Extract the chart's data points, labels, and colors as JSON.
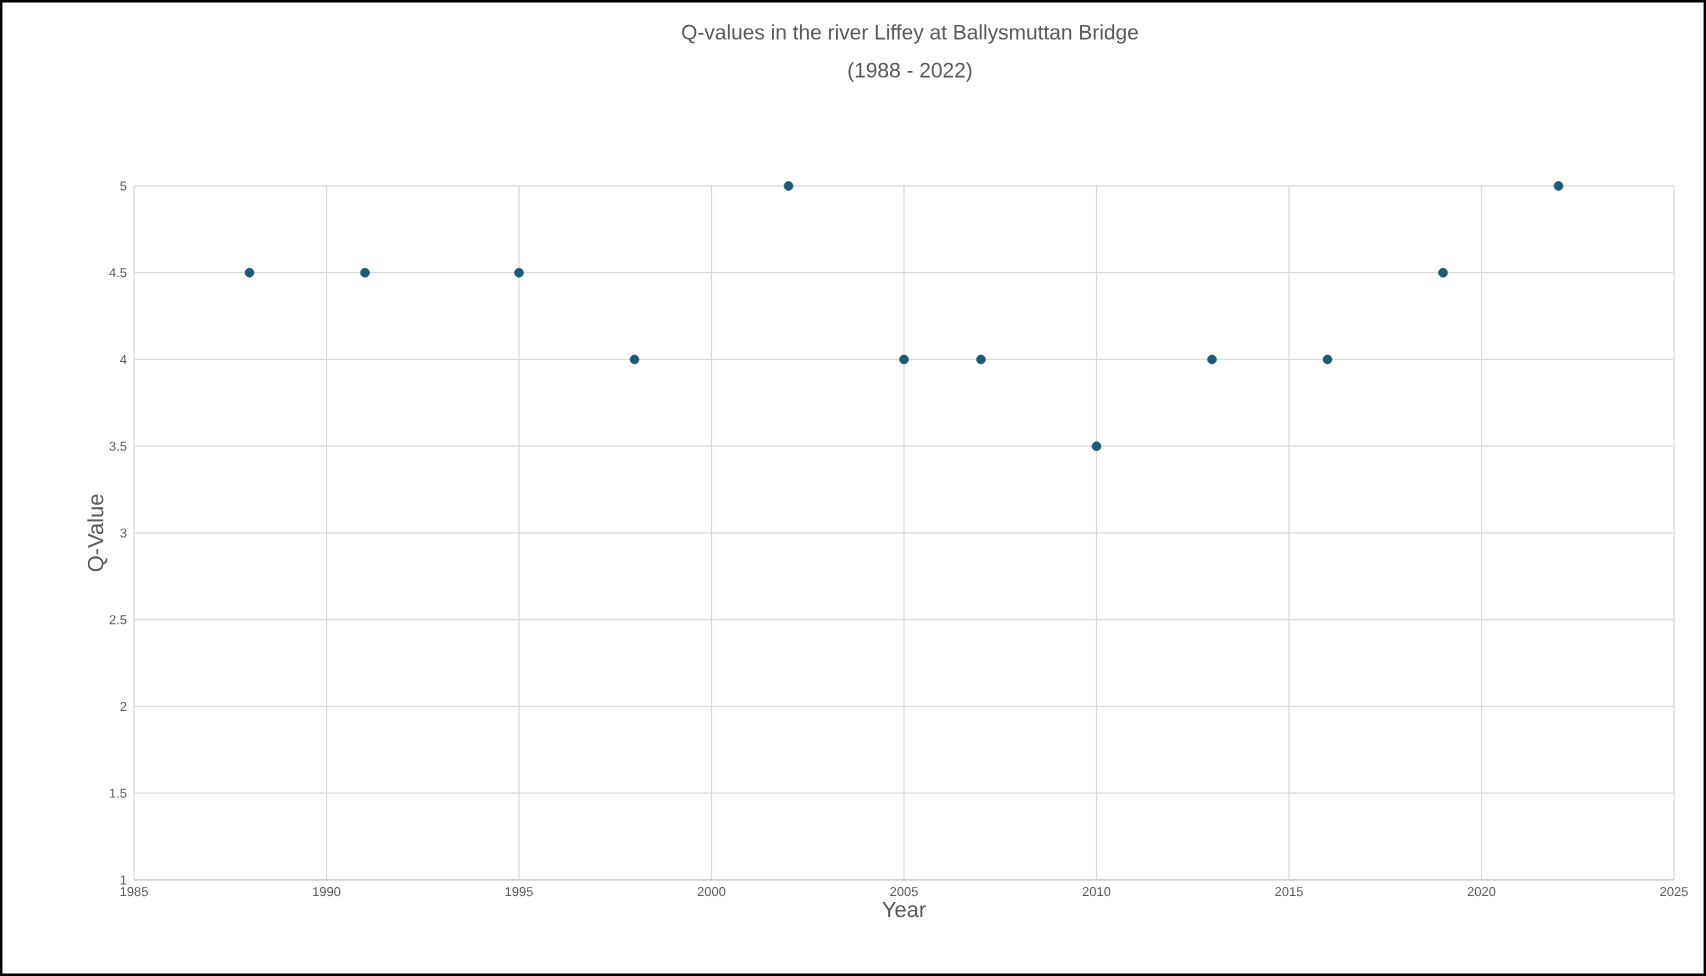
{
  "chart_data": {
    "type": "scatter",
    "title": "Q-values in the river Liffey at Ballysmuttan Bridge",
    "subtitle": "(1988 - 2022)",
    "xlabel": "Year",
    "ylabel": "Q-Value",
    "x": [
      1988,
      1991,
      1995,
      1998,
      2002,
      2005,
      2007,
      2010,
      2013,
      2016,
      2019,
      2022
    ],
    "values": [
      4.5,
      4.5,
      4.5,
      4,
      5,
      4,
      4,
      3.5,
      4,
      4,
      4.5,
      5
    ],
    "color": "#1b5a78",
    "marker": "circle",
    "grid": true,
    "xlim": [
      1985,
      2025
    ],
    "xticks": [
      1985,
      1990,
      1995,
      2000,
      2005,
      2010,
      2015,
      2020,
      2025
    ],
    "ylim": [
      1,
      5
    ],
    "yticks": [
      1,
      1.5,
      2,
      2.5,
      3,
      3.5,
      4,
      4.5,
      5
    ]
  }
}
